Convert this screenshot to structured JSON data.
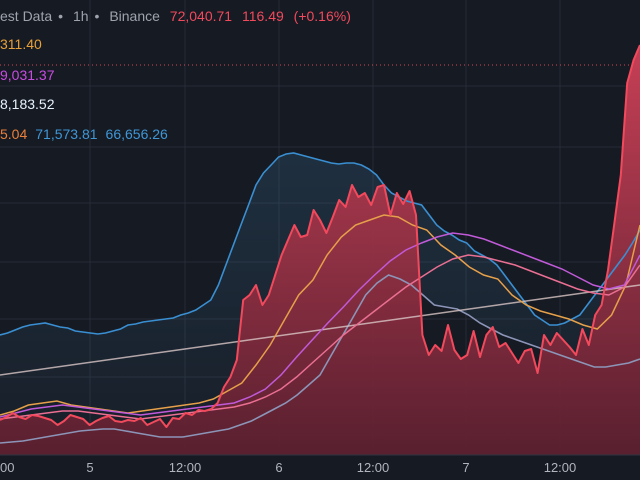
{
  "header": {
    "symbol_text": "est Data",
    "interval": "1h",
    "exchange": "Binance",
    "separator": "•",
    "last_price": "72,040.71",
    "change": "116.49",
    "change_pct": "(+0.16%)"
  },
  "indicator_rows": [
    {
      "values": [
        "311.40"
      ],
      "colors": [
        "#e7a03a"
      ]
    },
    {
      "values": [
        "9,031.37"
      ],
      "colors": [
        "#c94ce3"
      ]
    },
    {
      "values": [
        "8,183.52"
      ],
      "colors": [
        "#e8f3ff"
      ]
    },
    {
      "values": [
        "5.04",
        "71,573.81",
        "66,656.26"
      ],
      "colors": [
        "#e8803b",
        "#3f97d8",
        "#3f97d8"
      ]
    }
  ],
  "x_axis": {
    "ticks": [
      "00",
      "5",
      "12:00",
      "6",
      "12:00",
      "7",
      "12:00"
    ]
  },
  "colors": {
    "background": "#161a22",
    "price_line": "#f2495c",
    "bollinger_upper": "#3a8fd2",
    "bollinger_lower": "#8c95b8",
    "sma_slow": "#d9c7c7",
    "ema_orange": "#e6a04a",
    "ema_purple": "#c15ad9",
    "ema_pink": "#ea6f93"
  },
  "chart_data": {
    "type": "line",
    "series": [
      {
        "values": [
          35,
          38,
          42,
          38,
          36,
          40,
          39,
          37,
          35,
          30,
          34,
          40,
          38,
          36,
          30,
          34,
          37,
          39,
          34,
          33,
          35,
          34,
          37,
          30,
          33,
          36,
          28,
          37,
          36,
          42,
          40,
          45,
          44,
          46,
          52,
          68,
          78,
          95,
          155,
          160,
          170,
          150,
          160,
          180,
          200,
          215,
          230,
          218,
          220,
          245,
          235,
          222,
          238,
          255,
          248,
          270,
          258,
          262,
          250,
          268,
          270,
          240,
          262,
          251,
          264,
          240,
          120,
          100,
          110,
          104,
          130,
          105,
          96,
          100,
          124,
          98,
          120,
          128,
          108,
          112,
          102,
          92,
          104,
          106,
          82,
          120,
          110,
          122,
          115,
          108,
          100,
          126,
          110,
          140,
          150,
          185,
          232,
          280,
          372,
          395,
          410
        ]
      },
      {
        "values": [
          120,
          122,
          125,
          128,
          130,
          131,
          132,
          130,
          128,
          127,
          124,
          123,
          122,
          121,
          122,
          124,
          126,
          130,
          131,
          133,
          134,
          135,
          136,
          137,
          140,
          142,
          145,
          150,
          155,
          170,
          190,
          210,
          230,
          250,
          270,
          282,
          290,
          298,
          301,
          302,
          300,
          298,
          296,
          294,
          292,
          291,
          292,
          292,
          290,
          286,
          280,
          270,
          262,
          258,
          254,
          252,
          250,
          240,
          230,
          224,
          220,
          215,
          212,
          204,
          200,
          196,
          190,
          180,
          170,
          160,
          150,
          140,
          135,
          130,
          130,
          132,
          136,
          140,
          150,
          160,
          170,
          180,
          190,
          200,
          212,
          225
        ]
      },
      {
        "values": [
          12,
          13,
          14,
          16,
          18,
          20,
          22,
          24,
          25,
          26,
          26,
          24,
          22,
          20,
          18,
          18,
          18,
          20,
          22,
          24,
          26,
          30,
          34,
          40,
          46,
          52,
          60,
          70,
          80,
          100,
          120,
          140,
          160,
          172,
          180,
          176,
          170,
          160,
          150,
          148,
          146,
          140,
          132,
          126,
          120,
          116,
          112,
          108,
          104,
          100,
          96,
          92,
          88,
          88,
          90,
          92,
          96
        ]
      },
      {
        "values": [
          80,
          82,
          84,
          86,
          88,
          90,
          92,
          94,
          96,
          98,
          100,
          102,
          104,
          106,
          108,
          110,
          112,
          114,
          116,
          118,
          120,
          122,
          124,
          126,
          128,
          130,
          132,
          134,
          136,
          138,
          140,
          142,
          144,
          146,
          148,
          150,
          152,
          154,
          156,
          158,
          160,
          162,
          164,
          166,
          168,
          170
        ]
      },
      {
        "values": [
          40,
          44,
          50,
          52,
          54,
          50,
          48,
          46,
          44,
          42,
          44,
          46,
          48,
          50,
          52,
          56,
          64,
          72,
          90,
          110,
          135,
          160,
          175,
          200,
          218,
          230,
          235,
          240,
          238,
          230,
          225,
          210,
          200,
          188,
          180,
          176,
          160,
          150,
          144,
          140,
          136,
          130,
          126,
          140,
          170,
          230
        ]
      },
      {
        "values": [
          38,
          42,
          46,
          48,
          50,
          48,
          46,
          44,
          42,
          40,
          42,
          44,
          46,
          48,
          50,
          52,
          58,
          66,
          80,
          98,
          115,
          132,
          148,
          165,
          180,
          194,
          205,
          212,
          218,
          222,
          220,
          216,
          210,
          204,
          198,
          192,
          186,
          178,
          170,
          166,
          170,
          200
        ]
      },
      {
        "values": [
          36,
          38,
          40,
          42,
          44,
          44,
          42,
          40,
          38,
          36,
          38,
          40,
          42,
          44,
          46,
          48,
          52,
          58,
          66,
          78,
          92,
          106,
          120,
          132,
          144,
          156,
          168,
          178,
          188,
          196,
          200,
          198,
          194,
          190,
          184,
          178,
          172,
          166,
          162,
          160,
          168,
          190
        ]
      }
    ]
  }
}
